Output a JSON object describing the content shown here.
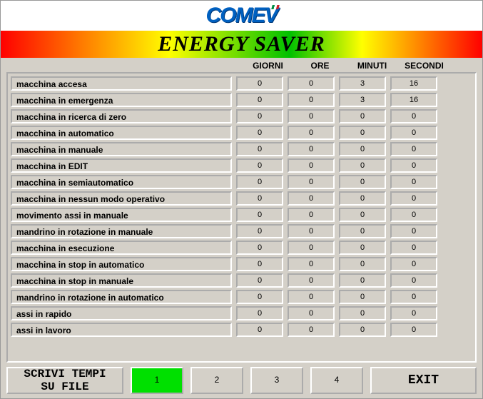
{
  "logo_text": "COMEV",
  "title": "ENERGY SAVER",
  "columns": {
    "giorni": "GIORNI",
    "ore": "ORE",
    "minuti": "MINUTI",
    "secondi": "SECONDI"
  },
  "rows": [
    {
      "label": "macchina accesa",
      "giorni": "0",
      "ore": "0",
      "minuti": "3",
      "secondi": "16"
    },
    {
      "label": "macchina in emergenza",
      "giorni": "0",
      "ore": "0",
      "minuti": "3",
      "secondi": "16"
    },
    {
      "label": "macchina in ricerca di zero",
      "giorni": "0",
      "ore": "0",
      "minuti": "0",
      "secondi": "0"
    },
    {
      "label": "macchina in automatico",
      "giorni": "0",
      "ore": "0",
      "minuti": "0",
      "secondi": "0"
    },
    {
      "label": "macchina in manuale",
      "giorni": "0",
      "ore": "0",
      "minuti": "0",
      "secondi": "0"
    },
    {
      "label": "macchina in EDIT",
      "giorni": "0",
      "ore": "0",
      "minuti": "0",
      "secondi": "0"
    },
    {
      "label": "macchina in semiautomatico",
      "giorni": "0",
      "ore": "0",
      "minuti": "0",
      "secondi": "0"
    },
    {
      "label": "macchina in nessun modo operativo",
      "giorni": "0",
      "ore": "0",
      "minuti": "0",
      "secondi": "0"
    },
    {
      "label": "movimento assi in manuale",
      "giorni": "0",
      "ore": "0",
      "minuti": "0",
      "secondi": "0"
    },
    {
      "label": "mandrino in rotazione in manuale",
      "giorni": "0",
      "ore": "0",
      "minuti": "0",
      "secondi": "0"
    },
    {
      "label": "macchina in esecuzione",
      "giorni": "0",
      "ore": "0",
      "minuti": "0",
      "secondi": "0"
    },
    {
      "label": "macchina in stop in automatico",
      "giorni": "0",
      "ore": "0",
      "minuti": "0",
      "secondi": "0"
    },
    {
      "label": "macchina in stop in manuale",
      "giorni": "0",
      "ore": "0",
      "minuti": "0",
      "secondi": "0"
    },
    {
      "label": "mandrino in rotazione in automatico",
      "giorni": "0",
      "ore": "0",
      "minuti": "0",
      "secondi": "0"
    },
    {
      "label": "assi in rapido",
      "giorni": "0",
      "ore": "0",
      "minuti": "0",
      "secondi": "0"
    },
    {
      "label": "assi in lavoro",
      "giorni": "0",
      "ore": "0",
      "minuti": "0",
      "secondi": "0"
    }
  ],
  "buttons": {
    "write_file": "SCRIVI TEMPI\nSU FILE",
    "page1": "1",
    "page2": "2",
    "page3": "3",
    "page4": "4",
    "exit": "EXIT"
  },
  "colors": {
    "window_bg": "#d4d0c8",
    "active_page_bg": "#00e000",
    "logo_color": "#0060c0"
  }
}
